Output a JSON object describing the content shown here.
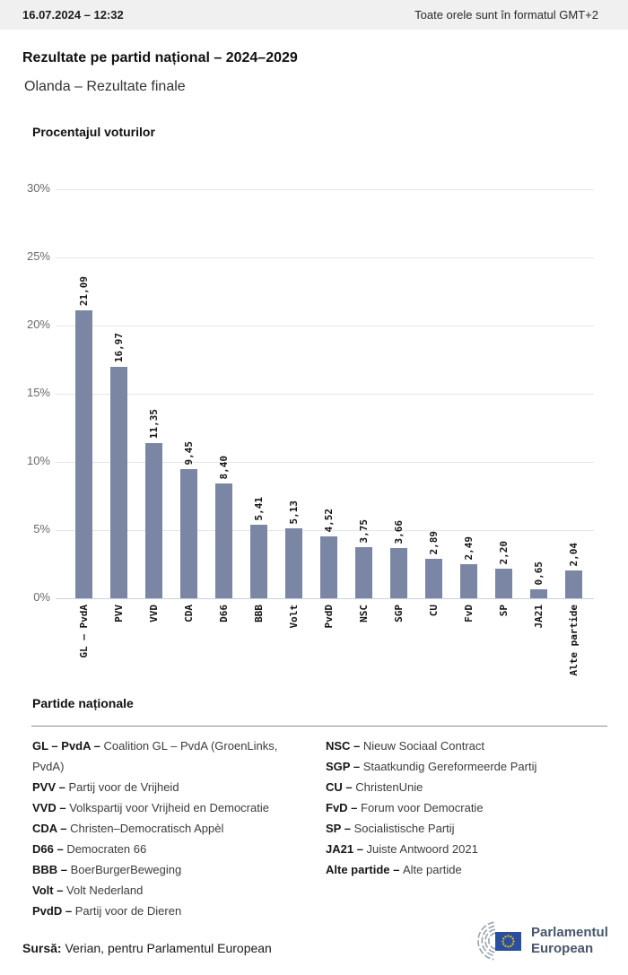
{
  "header": {
    "datetime": "16.07.2024 – 12:32",
    "timezone_note": "Toate orele sunt în formatul GMT+2"
  },
  "title": "Rezultate pe partid național – 2024–2029",
  "subtitle": "Olanda – Rezultate finale",
  "chart_data": {
    "type": "bar",
    "title": "Procentajul voturilor",
    "categories": [
      "GL – PvdA",
      "PVV",
      "VVD",
      "CDA",
      "D66",
      "BBB",
      "Volt",
      "PvdD",
      "NSC",
      "SGP",
      "CU",
      "FvD",
      "SP",
      "JA21",
      "Alte partide"
    ],
    "values": [
      21.09,
      16.97,
      11.35,
      9.45,
      8.4,
      5.41,
      5.13,
      4.52,
      3.75,
      3.66,
      2.89,
      2.49,
      2.2,
      0.65,
      2.04
    ],
    "value_labels": [
      "21,09",
      "16,97",
      "11,35",
      "9,45",
      "8,40",
      "5,41",
      "5,13",
      "4,52",
      "3,75",
      "3,66",
      "2,89",
      "2,49",
      "2,20",
      "0,65",
      "2,04"
    ],
    "ytick_labels": [
      "30%",
      "25%",
      "20%",
      "15%",
      "10%",
      "5%",
      "0%"
    ],
    "ylim": [
      0,
      30
    ],
    "grid": true,
    "legend_position": "none",
    "bar_color": "#7a86a4",
    "xlabel": "",
    "ylabel": "Procentajul voturilor"
  },
  "legend": {
    "heading": "Partide naționale",
    "columns": [
      [
        {
          "abbr": "GL – PvdA",
          "name": "Coalition GL – PvdA (GroenLinks, PvdA)"
        },
        {
          "abbr": "PVV",
          "name": "Partij voor de Vrijheid"
        },
        {
          "abbr": "VVD",
          "name": "Volkspartij voor Vrijheid en Democratie"
        },
        {
          "abbr": "CDA",
          "name": "Christen–Democratisch Appèl"
        },
        {
          "abbr": "D66",
          "name": "Democraten 66"
        },
        {
          "abbr": "BBB",
          "name": "BoerBurgerBeweging"
        },
        {
          "abbr": "Volt",
          "name": "Volt Nederland"
        },
        {
          "abbr": "PvdD",
          "name": "Partij voor de Dieren"
        }
      ],
      [
        {
          "abbr": "NSC",
          "name": "Nieuw Sociaal Contract"
        },
        {
          "abbr": "SGP",
          "name": "Staatkundig Gereformeerde Partij"
        },
        {
          "abbr": "CU",
          "name": "ChristenUnie"
        },
        {
          "abbr": "FvD",
          "name": "Forum voor Democratie"
        },
        {
          "abbr": "SP",
          "name": "Socialistische Partij"
        },
        {
          "abbr": "JA21",
          "name": "Juiste Antwoord 2021"
        },
        {
          "abbr": "Alte partide",
          "name": "Alte partide"
        }
      ]
    ]
  },
  "footer": {
    "source_label": "Sursă:",
    "source_text": " Verian, pentru Parlamentul European",
    "logo_line1": "Parlamentul",
    "logo_line2": "European"
  },
  "colors": {
    "bar": "#7a86a4",
    "baseline": "#c9d2e2",
    "gridline": "#e7e7e7",
    "topbar_bg": "#f0f0f0",
    "eu_flag_blue": "#2a4f9e",
    "eu_star_yellow": "#f6c500",
    "logo_text": "#46566b"
  }
}
